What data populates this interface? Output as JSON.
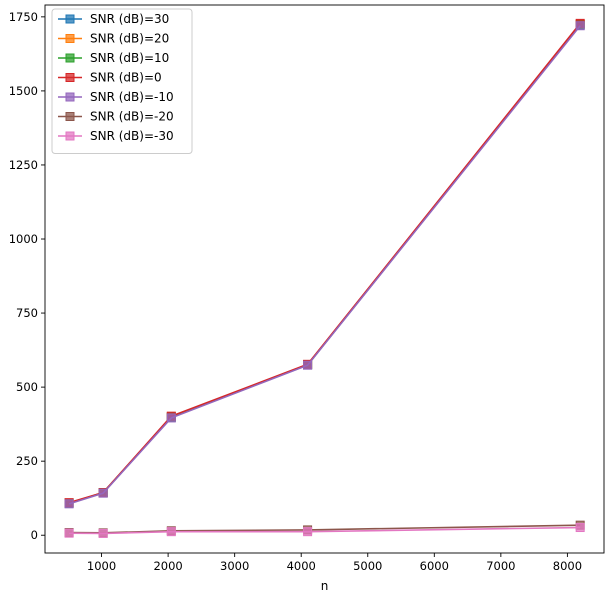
{
  "chart_data": {
    "type": "line",
    "title": "",
    "xlabel": "n",
    "ylabel": "",
    "xlim": [
      150,
      8550
    ],
    "ylim": [
      -60,
      1790
    ],
    "xticks": [
      1000,
      2000,
      3000,
      4000,
      5000,
      6000,
      7000,
      8000
    ],
    "yticks": [
      0,
      250,
      500,
      750,
      1000,
      1250,
      1500,
      1750
    ],
    "grid": false,
    "legend": "top-left",
    "x": [
      512,
      1024,
      2048,
      4096,
      8192
    ],
    "series": [
      {
        "name": "SNR (dB)=30",
        "color": "#1f77b4",
        "values": [
          108,
          143,
          398,
          575,
          1722
        ]
      },
      {
        "name": "SNR (dB)=20",
        "color": "#ff7f0e",
        "values": [
          109,
          143,
          400,
          576,
          1725
        ]
      },
      {
        "name": "SNR (dB)=10",
        "color": "#2ca02c",
        "values": [
          108,
          144,
          399,
          575,
          1724
        ]
      },
      {
        "name": "SNR (dB)=0",
        "color": "#d62728",
        "values": [
          110,
          144,
          402,
          577,
          1728
        ]
      },
      {
        "name": "SNR (dB)=-10",
        "color": "#9467bd",
        "values": [
          106,
          142,
          396,
          574,
          1720
        ]
      },
      {
        "name": "SNR (dB)=-20",
        "color": "#8c564b",
        "values": [
          9,
          8,
          15,
          18,
          34
        ]
      },
      {
        "name": "SNR (dB)=-30",
        "color": "#e377c2",
        "values": [
          7,
          6,
          12,
          12,
          26
        ]
      }
    ]
  }
}
